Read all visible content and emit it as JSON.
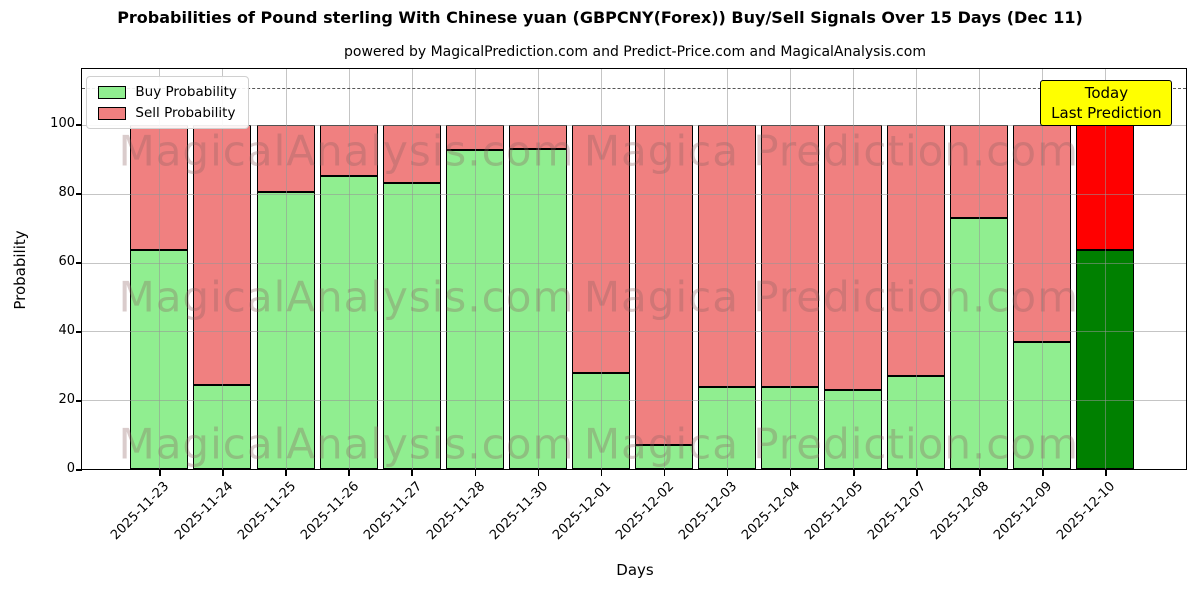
{
  "chart_data": {
    "type": "bar",
    "stacked": true,
    "title": "Probabilities of Pound sterling With Chinese yuan (GBPCNY(Forex)) Buy/Sell Signals Over 15 Days (Dec 11)",
    "subtitle": "powered by MagicalPrediction.com and Predict-Price.com and MagicalAnalysis.com",
    "xlabel": "Days",
    "ylabel": "Probability",
    "categories": [
      "2025-11-23",
      "2025-11-24",
      "2025-11-25",
      "2025-11-26",
      "2025-11-27",
      "2025-11-28",
      "2025-11-30",
      "2025-12-01",
      "2025-12-02",
      "2025-12-03",
      "2025-12-04",
      "2025-12-05",
      "2025-12-07",
      "2025-12-08",
      "2025-12-09",
      "2025-12-10"
    ],
    "series": [
      {
        "name": "Buy Probability",
        "color": "#90ee90",
        "values": [
          63.5,
          24.5,
          80.5,
          85,
          83,
          92.5,
          93,
          28,
          7,
          24,
          24,
          23,
          27,
          73,
          37,
          63.5
        ]
      },
      {
        "name": "Sell Probability",
        "color": "#f08080",
        "values": [
          36.5,
          75.5,
          19.5,
          15,
          17,
          7.5,
          7,
          72,
          93,
          76,
          76,
          77,
          73,
          27,
          63,
          36.5
        ]
      }
    ],
    "today_bar": {
      "index": 15,
      "category": "2025-12-10",
      "buy_color": "#008000",
      "sell_color": "#ff0000"
    },
    "annotation": {
      "line1": "Today",
      "line2": "Last Prediction",
      "bg_color": "#ffff00"
    },
    "ylim": [
      0,
      116
    ],
    "yticks": [
      "0",
      "20",
      "40",
      "60",
      "80",
      "100"
    ],
    "dashed_line_y": 110.5,
    "grid": true,
    "legend_position": "upper-left",
    "watermarks": {
      "left_text": "MagicalAnalysis.com",
      "right_text": "Magica Prediction.com",
      "rows": 3
    },
    "background": "#ffffff"
  }
}
